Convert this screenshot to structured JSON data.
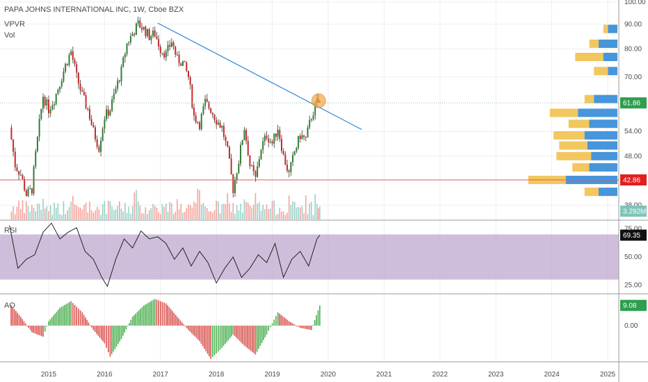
{
  "header": {
    "title": "PAPA JOHNS INTERNATIONAL INC, 1W, Cboe BZX",
    "vpvr_label": "VPVR",
    "vol_label": "Vol"
  },
  "chart_data": [
    {
      "type": "candlestick",
      "title": "PAPA JOHNS INTERNATIONAL INC, 1W, Cboe BZX",
      "x_ticks": [
        "2015",
        "2016",
        "2017",
        "2018",
        "2019",
        "2020",
        "2021",
        "2022",
        "2023",
        "2024",
        "2025"
      ],
      "y_ticks": [
        "100.00",
        "90.00",
        "80.00",
        "70.00",
        "54.00",
        "48.00",
        "38.00"
      ],
      "y_tick_values": [
        100,
        90,
        80,
        70,
        54,
        48,
        38
      ],
      "ylim": [
        35.5,
        101
      ],
      "scale": "log",
      "series": [
        {
          "name": "price",
          "x": [
            2014.3,
            2014.4,
            2014.5,
            2014.6,
            2014.7,
            2014.8,
            2014.9,
            2015.0,
            2015.1,
            2015.2,
            2015.3,
            2015.4,
            2015.5,
            2015.6,
            2015.7,
            2015.8,
            2015.9,
            2016.0,
            2016.1,
            2016.2,
            2016.3,
            2016.4,
            2016.5,
            2016.6,
            2016.7,
            2016.8,
            2016.9,
            2017.0,
            2017.1,
            2017.2,
            2017.3,
            2017.4,
            2017.5,
            2017.6,
            2017.7,
            2017.8,
            2017.9,
            2018.0,
            2018.1,
            2018.2,
            2018.3,
            2018.4,
            2018.5,
            2018.6,
            2018.7,
            2018.8,
            2018.9,
            2019.0,
            2019.1,
            2019.2,
            2019.3,
            2019.4,
            2019.5,
            2019.6,
            2019.7,
            2019.8,
            2019.85
          ],
          "close": [
            55,
            46,
            44,
            40,
            41,
            52,
            64,
            60,
            63,
            68,
            74,
            79,
            70,
            64,
            60,
            54,
            50,
            58,
            60,
            66,
            72,
            82,
            86,
            90,
            88,
            85,
            86,
            80,
            78,
            83,
            76,
            75,
            70,
            58,
            56,
            62,
            60,
            57,
            55,
            49,
            41,
            47,
            55,
            46,
            43,
            50,
            53,
            51,
            55,
            48,
            44,
            49,
            53,
            52,
            58,
            62,
            61.86
          ]
        }
      ],
      "current_price": "61.86",
      "support_level": "42.86",
      "volume_label": "3.292M",
      "trendline": {
        "from": [
          2016.95,
          90.5
        ],
        "to": [
          2020.6,
          54.5
        ]
      },
      "highlight_point": [
        2019.83,
        62.5
      ],
      "volume_profile": [
        {
          "price": 88,
          "buy": 0.1,
          "sell": 0.15
        },
        {
          "price": 82,
          "buy": 0.2,
          "sell": 0.3
        },
        {
          "price": 77,
          "buy": 0.15,
          "sell": 0.45
        },
        {
          "price": 72,
          "buy": 0.1,
          "sell": 0.25
        },
        {
          "price": 63,
          "buy": 0.25,
          "sell": 0.35
        },
        {
          "price": 59,
          "buy": 0.42,
          "sell": 0.72
        },
        {
          "price": 56,
          "buy": 0.3,
          "sell": 0.52
        },
        {
          "price": 53,
          "buy": 0.35,
          "sell": 0.68
        },
        {
          "price": 50.5,
          "buy": 0.32,
          "sell": 0.62
        },
        {
          "price": 48,
          "buy": 0.28,
          "sell": 0.65
        },
        {
          "price": 45.5,
          "buy": 0.3,
          "sell": 0.48
        },
        {
          "price": 42.86,
          "buy": 0.55,
          "sell": 0.95
        },
        {
          "price": 40.5,
          "buy": 0.2,
          "sell": 0.35
        }
      ]
    },
    {
      "type": "line",
      "title": "RSI",
      "current_value": "69.35",
      "y_ticks": [
        "75.00",
        "50.00",
        "25.00"
      ],
      "y_tick_values": [
        75,
        50,
        25
      ],
      "ylim": [
        18,
        82
      ],
      "band": [
        30,
        70
      ],
      "series": [
        {
          "name": "RSI",
          "x": [
            2014.3,
            2014.45,
            2014.6,
            2014.75,
            2014.9,
            2015.05,
            2015.2,
            2015.35,
            2015.5,
            2015.65,
            2015.8,
            2015.95,
            2016.05,
            2016.2,
            2016.35,
            2016.5,
            2016.65,
            2016.8,
            2016.95,
            2017.1,
            2017.25,
            2017.4,
            2017.55,
            2017.7,
            2017.85,
            2018.0,
            2018.15,
            2018.3,
            2018.45,
            2018.6,
            2018.75,
            2018.9,
            2019.05,
            2019.2,
            2019.35,
            2019.5,
            2019.65,
            2019.8,
            2019.85
          ],
          "values": [
            78,
            40,
            48,
            52,
            72,
            80,
            66,
            72,
            76,
            55,
            48,
            32,
            24,
            48,
            66,
            58,
            73,
            66,
            68,
            62,
            48,
            58,
            42,
            55,
            45,
            27,
            40,
            50,
            32,
            40,
            52,
            45,
            62,
            32,
            48,
            55,
            42,
            66,
            69.35
          ]
        }
      ]
    },
    {
      "type": "bar",
      "title": "AO",
      "current_value": "9.08",
      "y_ticks": [
        "0.00"
      ],
      "y_tick_values": [
        0
      ],
      "ylim": [
        -16,
        14
      ],
      "series": [
        {
          "name": "AO",
          "x": [
            2014.3,
            2014.5,
            2014.7,
            2014.9,
            2015.0,
            2015.2,
            2015.4,
            2015.6,
            2015.8,
            2016.0,
            2016.1,
            2016.3,
            2016.5,
            2016.7,
            2016.9,
            2017.1,
            2017.3,
            2017.5,
            2017.7,
            2017.9,
            2018.1,
            2018.3,
            2018.5,
            2018.7,
            2018.9,
            2019.1,
            2019.3,
            2019.5,
            2019.7,
            2019.85
          ],
          "values": [
            10,
            4,
            -3,
            -5,
            2,
            8,
            11,
            6,
            -2,
            -8,
            -14,
            -6,
            4,
            9,
            12,
            10,
            4,
            -2,
            -7,
            -15,
            -10,
            -4,
            -9,
            -13,
            -4,
            6,
            2,
            -1,
            -2,
            9.08
          ]
        }
      ]
    }
  ]
}
